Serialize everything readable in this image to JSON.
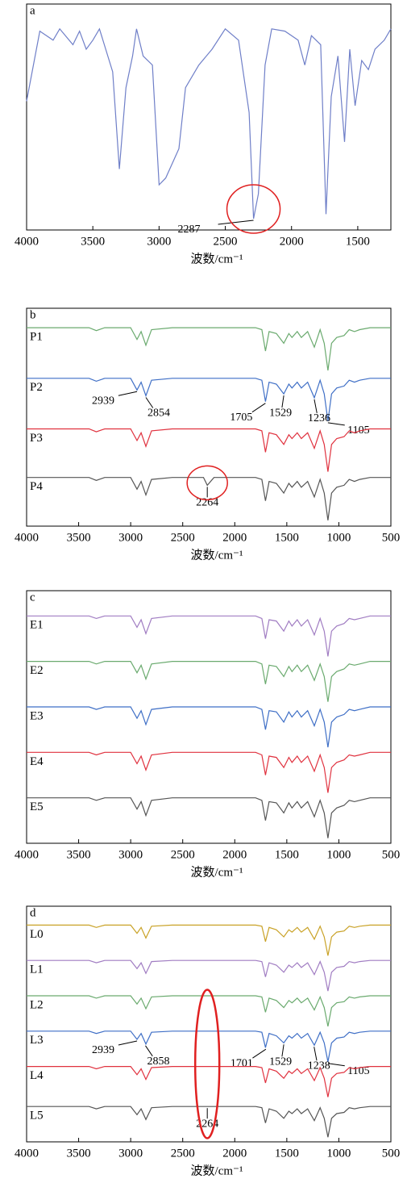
{
  "chart_data": [
    {
      "type": "line",
      "label": "a",
      "x_label": "波数/cm⁻¹",
      "xlim": [
        4000,
        1250
      ],
      "ylim": [
        0,
        100
      ],
      "xticks": [
        4000,
        3500,
        3000,
        2500,
        2000,
        1500
      ],
      "x": [
        4000,
        3900,
        3800,
        3750,
        3650,
        3600,
        3550,
        3500,
        3450,
        3350,
        3300,
        3250,
        3200,
        3170,
        3120,
        3050,
        3000,
        2950,
        2850,
        2800,
        2700,
        2600,
        2500,
        2400,
        2320,
        2287,
        2250,
        2200,
        2150,
        2050,
        1950,
        1900,
        1850,
        1780,
        1740,
        1700,
        1650,
        1600,
        1560,
        1520,
        1470,
        1420,
        1370,
        1300,
        1250
      ],
      "series": [
        {
          "color": "#6f7fc8",
          "annotations": [
            2287
          ],
          "values": [
            57,
            88,
            84,
            89,
            82,
            88,
            80,
            84,
            89,
            70,
            27,
            63,
            77,
            89,
            77,
            73,
            20,
            23,
            36,
            63,
            73,
            80,
            89,
            84,
            52,
            5,
            16,
            73,
            89,
            88,
            84,
            73,
            86,
            82,
            7,
            59,
            77,
            39,
            80,
            55,
            75,
            71,
            80,
            84,
            89
          ]
        }
      ]
    },
    {
      "type": "line",
      "label": "b",
      "x_label": "波数/cm⁻¹",
      "xlim": [
        4000,
        500
      ],
      "ylim": [
        -12,
        100
      ],
      "xticks": [
        4000,
        3500,
        3000,
        2500,
        2000,
        1500,
        1000,
        500
      ],
      "x": [
        4000,
        3400,
        3330,
        3250,
        3000,
        2939,
        2900,
        2854,
        2800,
        2600,
        2300,
        2264,
        2200,
        1800,
        1740,
        1705,
        1670,
        1600,
        1529,
        1480,
        1450,
        1400,
        1360,
        1300,
        1236,
        1180,
        1140,
        1105,
        1070,
        1020,
        950,
        900,
        850,
        800,
        700,
        500
      ],
      "series": [
        {
          "name": "P1",
          "color": "#6aaa6e",
          "values": [
            90,
            90,
            88.5,
            90,
            90,
            84,
            88,
            81,
            89,
            90,
            90,
            90,
            90,
            90,
            89,
            78,
            88,
            87,
            82,
            87,
            85,
            88,
            85,
            88,
            80,
            89,
            82,
            68,
            82,
            85,
            86,
            89,
            88,
            89,
            90,
            90
          ]
        },
        {
          "name": "P2",
          "color": "#3f6fc6",
          "annotations": [
            2939,
            2854,
            1705,
            1529,
            1236,
            1105
          ],
          "values": [
            64,
            64,
            62.5,
            64,
            64,
            58,
            62,
            55,
            63,
            64,
            64,
            64,
            64,
            64,
            63,
            52,
            62,
            61,
            56,
            61,
            59,
            62,
            59,
            62,
            54,
            63,
            56,
            42,
            56,
            59,
            60,
            63,
            62,
            63,
            64,
            64
          ]
        },
        {
          "name": "P3",
          "color": "#e0323f",
          "values": [
            38,
            38,
            36.5,
            38,
            38,
            32,
            36,
            29,
            37,
            38,
            38,
            38,
            38,
            38,
            37,
            26,
            36,
            35,
            30,
            35,
            33,
            36,
            33,
            36,
            28,
            37,
            30,
            16,
            30,
            33,
            34,
            37,
            36,
            37,
            38,
            38
          ]
        },
        {
          "name": "P4",
          "color": "#555555",
          "annotations": [
            2264
          ],
          "values": [
            13,
            13,
            11.5,
            13,
            13,
            7,
            11,
            4,
            12,
            13,
            13,
            9,
            13,
            13,
            12,
            1,
            11,
            10,
            5,
            10,
            8,
            11,
            8,
            11,
            3,
            12,
            5,
            -9,
            5,
            8,
            9,
            12,
            11,
            12,
            13,
            13
          ]
        }
      ]
    },
    {
      "type": "line",
      "label": "c",
      "x_label": "波数/cm⁻¹",
      "xlim": [
        4000,
        500
      ],
      "ylim": [
        0,
        100
      ],
      "xticks": [
        4000,
        3500,
        3000,
        2500,
        2000,
        1500,
        1000,
        500
      ],
      "x": [
        4000,
        3400,
        3330,
        3250,
        3000,
        2939,
        2900,
        2854,
        2800,
        2600,
        2300,
        2264,
        2200,
        1800,
        1740,
        1705,
        1670,
        1600,
        1529,
        1480,
        1450,
        1400,
        1360,
        1300,
        1236,
        1180,
        1140,
        1105,
        1070,
        1020,
        950,
        900,
        850,
        800,
        700,
        500
      ],
      "series": [
        {
          "name": "E1",
          "color": "#a07cc2",
          "values": [
            90,
            90,
            89,
            90,
            90,
            85.5,
            88.5,
            83,
            89,
            90,
            90,
            90,
            90,
            90,
            89,
            81,
            88.5,
            88,
            84,
            88,
            86,
            88.5,
            86,
            88.5,
            82.5,
            89,
            84,
            74,
            84,
            86,
            87,
            89,
            88.5,
            89,
            90,
            90
          ]
        },
        {
          "name": "E2",
          "color": "#6aaa6e",
          "values": [
            72,
            72,
            71,
            72,
            72,
            67.5,
            70.5,
            65,
            71,
            72,
            72,
            72,
            72,
            72,
            71,
            63,
            70.5,
            70,
            66,
            70,
            68,
            70.5,
            68,
            70.5,
            64.5,
            71,
            66,
            56,
            66,
            68,
            69,
            71,
            70.5,
            71,
            72,
            72
          ]
        },
        {
          "name": "E3",
          "color": "#3f6fc6",
          "values": [
            54,
            54,
            53,
            54,
            54,
            49.5,
            52.5,
            47,
            53,
            54,
            54,
            54,
            54,
            54,
            53,
            45,
            52.5,
            52,
            48,
            52,
            50,
            52.5,
            50,
            52.5,
            46.5,
            53,
            48,
            38,
            48,
            50,
            51,
            53,
            52.5,
            53,
            54,
            54
          ]
        },
        {
          "name": "E4",
          "color": "#e0323f",
          "values": [
            36,
            36,
            35,
            36,
            36,
            31.5,
            34.5,
            29,
            35,
            36,
            36,
            36,
            36,
            36,
            35,
            27,
            34.5,
            34,
            30,
            34,
            32,
            34.5,
            32,
            34.5,
            28.5,
            35,
            30,
            20,
            30,
            32,
            33,
            35,
            34.5,
            35,
            36,
            36
          ]
        },
        {
          "name": "E5",
          "color": "#555555",
          "values": [
            18,
            18,
            17,
            18,
            18,
            13.5,
            16.5,
            11,
            17,
            18,
            18,
            18,
            18,
            18,
            17,
            9,
            16.5,
            16,
            12,
            16,
            14,
            16.5,
            14,
            16.5,
            10.5,
            17,
            12,
            2,
            12,
            14,
            15,
            17,
            16.5,
            17,
            18,
            18
          ]
        }
      ]
    },
    {
      "type": "line",
      "label": "d",
      "x_label": "波数/cm⁻¹",
      "xlim": [
        4000,
        500
      ],
      "ylim": [
        0,
        100
      ],
      "xticks": [
        4000,
        3500,
        3000,
        2500,
        2000,
        1500,
        1000,
        500
      ],
      "x": [
        4000,
        3400,
        3330,
        3250,
        3000,
        2939,
        2900,
        2854,
        2800,
        2600,
        2300,
        2264,
        2200,
        1800,
        1740,
        1705,
        1670,
        1600,
        1529,
        1480,
        1450,
        1400,
        1360,
        1300,
        1236,
        1180,
        1140,
        1105,
        1070,
        1020,
        950,
        900,
        850,
        800,
        700,
        500
      ],
      "series": [
        {
          "name": "L0",
          "color": "#c9a227",
          "values": [
            92,
            92,
            91,
            92,
            92,
            88.5,
            91,
            86.5,
            91.5,
            92,
            92,
            92,
            92,
            92,
            91.5,
            85,
            91,
            90,
            87,
            90,
            89,
            91,
            89,
            91,
            86,
            91.5,
            87,
            79,
            87,
            89,
            89.5,
            91.5,
            91,
            91.5,
            92,
            92
          ]
        },
        {
          "name": "L1",
          "color": "#a07cc2",
          "values": [
            77,
            77,
            76,
            77,
            77,
            73.5,
            76,
            71.5,
            76.5,
            77,
            77,
            77,
            77,
            77,
            76.5,
            70,
            76,
            75,
            72,
            75,
            74,
            76,
            74,
            76,
            71,
            76.5,
            72,
            64,
            72,
            74,
            74.5,
            76.5,
            76,
            76.5,
            77,
            77
          ]
        },
        {
          "name": "L2",
          "color": "#6aaa6e",
          "values": [
            62,
            62,
            61,
            62,
            62,
            58.5,
            61,
            56.5,
            61.5,
            62,
            62,
            62,
            62,
            62,
            61.5,
            55,
            61,
            60,
            57,
            60,
            59,
            61,
            59,
            61,
            56,
            61.5,
            57,
            49,
            57,
            59,
            59.5,
            61.5,
            61,
            61.5,
            62,
            62
          ]
        },
        {
          "name": "L3",
          "color": "#3f6fc6",
          "annotations": [
            2939,
            2858,
            1701,
            1529,
            1238,
            1105
          ],
          "values": [
            47,
            47,
            46,
            47,
            47,
            43.5,
            46,
            41.5,
            46.5,
            47,
            47,
            47,
            47,
            47,
            46.5,
            40,
            46,
            45,
            42,
            45,
            44,
            46,
            44,
            46,
            41,
            46.5,
            42,
            34,
            42,
            44,
            44.5,
            46.5,
            46,
            46.5,
            47,
            47
          ]
        },
        {
          "name": "L4",
          "color": "#e0323f",
          "values": [
            32,
            32,
            31,
            32,
            32,
            28.5,
            31,
            26.5,
            31.5,
            32,
            32,
            32,
            32,
            32,
            31.5,
            25,
            31,
            30,
            27,
            30,
            29,
            31,
            29,
            31,
            26,
            31.5,
            27,
            19,
            27,
            29,
            29.5,
            31.5,
            31,
            31.5,
            32,
            32
          ]
        },
        {
          "name": "L5",
          "color": "#555555",
          "annotations": [
            2264
          ],
          "values": [
            15,
            15,
            14,
            15,
            15,
            11.5,
            14,
            9.5,
            14.5,
            15,
            15,
            15,
            15,
            15,
            14.5,
            8,
            14,
            13,
            10,
            13,
            12,
            14,
            12,
            14,
            9,
            14.5,
            10,
            2,
            10,
            12,
            12.5,
            14.5,
            14,
            14.5,
            15,
            15
          ]
        }
      ]
    }
  ]
}
